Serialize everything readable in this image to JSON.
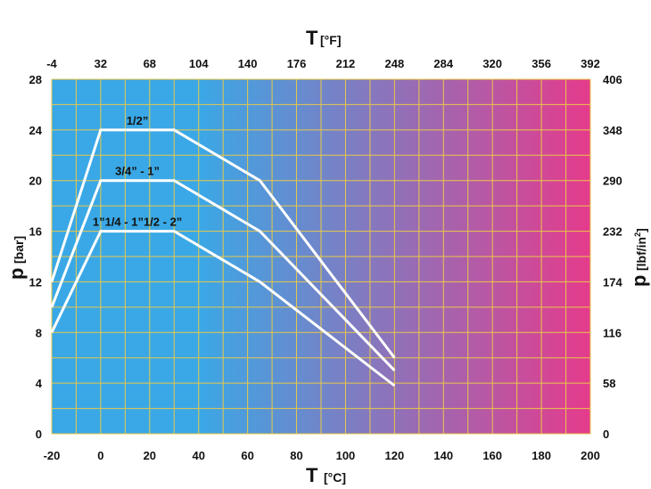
{
  "chart_data": {
    "type": "line",
    "x": {
      "label": "T",
      "unit": "[°C]",
      "range": [
        -20,
        200
      ],
      "ticks": [
        "-20",
        "0",
        "20",
        "40",
        "60",
        "80",
        "100",
        "120",
        "140",
        "160",
        "180",
        "200"
      ]
    },
    "x2": {
      "label": "T",
      "unit": "[°F]",
      "range": [
        -4,
        392
      ],
      "ticks": [
        "-4",
        "32",
        "68",
        "104",
        "140",
        "176",
        "212",
        "248",
        "284",
        "320",
        "356",
        "392"
      ]
    },
    "y": {
      "label": "p",
      "unit": "[bar]",
      "range": [
        0,
        28
      ],
      "ticks": [
        "0",
        "4",
        "8",
        "12",
        "16",
        "20",
        "24",
        "28"
      ]
    },
    "y2": {
      "label": "p",
      "unit": "[lbf/in",
      "unit_sup": "2",
      "unit_end": "]",
      "range": [
        0,
        406
      ],
      "ticks": [
        "0",
        "58",
        "116",
        "174",
        "232",
        "290",
        "348",
        "406"
      ]
    },
    "grid": true,
    "background_gradient": [
      "#3aa8e6",
      "#3aa8e6",
      "#e53b8c"
    ],
    "series": [
      {
        "name": "1/2”",
        "points": [
          [
            -20,
            12
          ],
          [
            0,
            24
          ],
          [
            30,
            24
          ],
          [
            65,
            20
          ],
          [
            120,
            6
          ]
        ]
      },
      {
        "name": "3/4” -  1”",
        "points": [
          [
            -20,
            10
          ],
          [
            0,
            20
          ],
          [
            30,
            20
          ],
          [
            65,
            16
          ],
          [
            120,
            5
          ]
        ]
      },
      {
        "name": "1”1/4 - 1”1/2 - 2”",
        "points": [
          [
            -20,
            8
          ],
          [
            0,
            16
          ],
          [
            30,
            16
          ],
          [
            65,
            12
          ],
          [
            120,
            3.8
          ]
        ]
      }
    ]
  }
}
